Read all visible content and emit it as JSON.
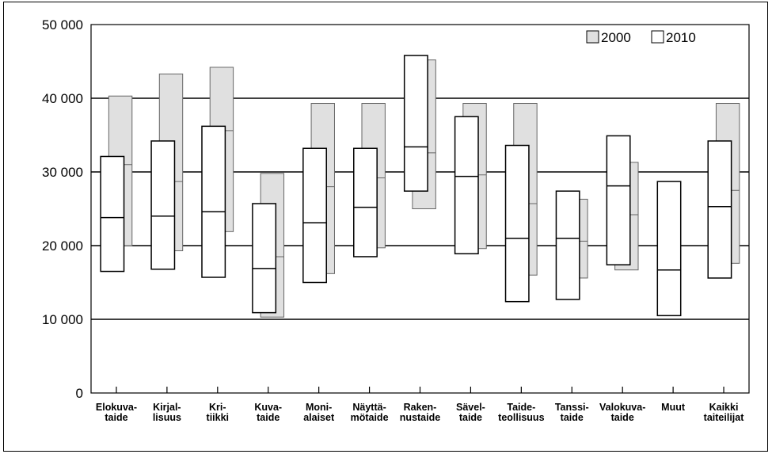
{
  "chart_data": {
    "type": "boxplot",
    "ylim": [
      0,
      50000
    ],
    "yticks": [
      0,
      10000,
      20000,
      30000,
      40000,
      50000
    ],
    "ytick_labels": [
      "0",
      "10 000",
      "20 000",
      "30 000",
      "40 000",
      "50 000"
    ],
    "grid": "horizontal",
    "legend_position": "top-right",
    "categories": [
      [
        "Elokuva-",
        "taide"
      ],
      [
        "Kirjal-",
        "lisuus"
      ],
      [
        "Kri-",
        "tiikki"
      ],
      [
        "Kuva-",
        "taide"
      ],
      [
        "Moni-",
        "alaiset"
      ],
      [
        "Näyttä-",
        "mötaide"
      ],
      [
        "Raken-",
        "nustaide"
      ],
      [
        "Sävel-",
        "taide"
      ],
      [
        "Taide-",
        "teollisuus"
      ],
      [
        "Tanssi-",
        "taide"
      ],
      [
        "Valokuva-",
        "taide"
      ],
      [
        "Muut"
      ],
      [
        "Kaikki",
        "taiteilijat"
      ]
    ],
    "series": [
      {
        "name": "2000",
        "color": "#e0e0e0",
        "boxes": [
          {
            "low": 20000,
            "median": 31000,
            "high": 40300
          },
          {
            "low": 19300,
            "median": 28700,
            "high": 43300
          },
          {
            "low": 21900,
            "median": 35600,
            "high": 44200
          },
          {
            "low": 10300,
            "median": 18500,
            "high": 29800
          },
          {
            "low": 16200,
            "median": 28000,
            "high": 39300
          },
          {
            "low": 19700,
            "median": 29200,
            "high": 39300
          },
          {
            "low": 25000,
            "median": 32600,
            "high": 45200
          },
          {
            "low": 19600,
            "median": 29600,
            "high": 39300
          },
          {
            "low": 16000,
            "median": 25700,
            "high": 39300
          },
          {
            "low": 15600,
            "median": 20600,
            "high": 26300
          },
          {
            "low": 16700,
            "median": 24200,
            "high": 31300
          },
          null,
          {
            "low": 17600,
            "median": 27500,
            "high": 39300
          }
        ]
      },
      {
        "name": "2010",
        "color": "#ffffff",
        "boxes": [
          {
            "low": 16500,
            "median": 23800,
            "high": 32100
          },
          {
            "low": 16800,
            "median": 24000,
            "high": 34200
          },
          {
            "low": 15700,
            "median": 24600,
            "high": 36200
          },
          {
            "low": 10900,
            "median": 16900,
            "high": 25700
          },
          {
            "low": 15000,
            "median": 23100,
            "high": 33200
          },
          {
            "low": 18500,
            "median": 25200,
            "high": 33200
          },
          {
            "low": 27400,
            "median": 33400,
            "high": 45800
          },
          {
            "low": 18900,
            "median": 29400,
            "high": 37500
          },
          {
            "low": 12400,
            "median": 21000,
            "high": 33600
          },
          {
            "low": 12700,
            "median": 21000,
            "high": 27400
          },
          {
            "low": 17400,
            "median": 28100,
            "high": 34900
          },
          {
            "low": 10500,
            "median": 16700,
            "high": 28700
          },
          {
            "low": 15600,
            "median": 25300,
            "high": 34200
          }
        ]
      }
    ]
  }
}
